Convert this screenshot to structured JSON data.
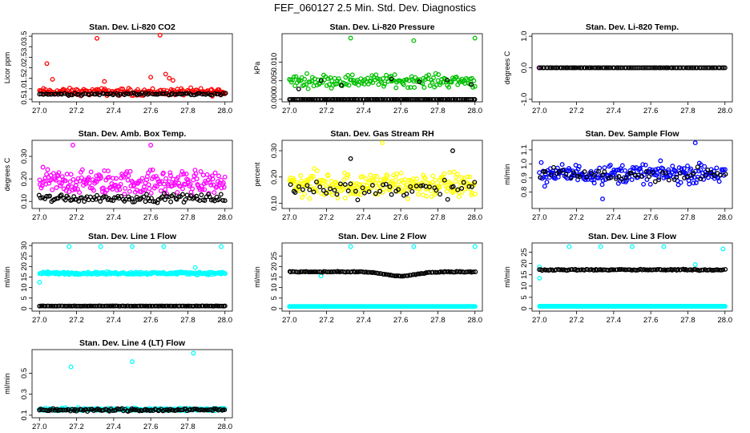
{
  "title": "FEF_060127  2.5 Min. Std. Dev. Diagnostics",
  "chart_data": [
    {
      "type": "scatter",
      "title": "Stan. Dev. Li-820 CO2",
      "ylabel": "Licor ppm",
      "xlim": [
        27.0,
        28.0
      ],
      "ylim": [
        0.5,
        3.5
      ],
      "xticks": [
        "27.0",
        "27.2",
        "27.4",
        "27.6",
        "27.8",
        "28.0"
      ],
      "yticks": [
        "0.5",
        "1.0",
        "1.5",
        "2.0",
        "2.5",
        "3.0",
        "3.5"
      ],
      "series": [
        {
          "color": "#ff0000",
          "base": 0.85,
          "spread": 0.25,
          "n": 180,
          "outliers": [
            [
              27.04,
              2.2
            ],
            [
              27.31,
              3.4
            ],
            [
              27.65,
              3.55
            ],
            [
              27.07,
              1.45
            ],
            [
              27.35,
              1.35
            ],
            [
              27.6,
              1.55
            ],
            [
              27.68,
              1.7
            ],
            [
              27.7,
              1.5
            ],
            [
              27.72,
              1.4
            ]
          ]
        },
        {
          "color": "#000000",
          "base": 0.75,
          "spread": 0.08,
          "n": 90,
          "outliers": []
        }
      ]
    },
    {
      "type": "scatter",
      "title": "Stan. Dev. Li-820 Pressure",
      "ylabel": "kPa",
      "xlim": [
        27.0,
        28.0
      ],
      "ylim": [
        0.0,
        0.017
      ],
      "xticks": [
        "27.0",
        "27.2",
        "27.4",
        "27.6",
        "27.8",
        "28.0"
      ],
      "yticks": [
        "0.000",
        "0.005",
        "0.010"
      ],
      "series": [
        {
          "color": "#00c000",
          "base": 0.005,
          "spread": 0.0025,
          "n": 170,
          "outliers": [
            [
              27.33,
              0.0165
            ],
            [
              27.67,
              0.0158
            ],
            [
              28.0,
              0.0165
            ]
          ]
        },
        {
          "color": "#000000",
          "base": 0.0,
          "spread": 0.0,
          "n": 120,
          "outliers": [
            [
              27.05,
              0.0028
            ],
            [
              27.17,
              0.005
            ],
            [
              27.28,
              0.0038
            ],
            [
              27.55,
              0.0055
            ],
            [
              27.7,
              0.0047
            ],
            [
              27.85,
              0.0052
            ],
            [
              27.98,
              0.004
            ]
          ]
        }
      ]
    },
    {
      "type": "scatter",
      "title": "Stan. Dev. Li-820 Temp.",
      "ylabel": "degrees C",
      "xlim": [
        27.0,
        28.0
      ],
      "ylim": [
        -1.0,
        1.0
      ],
      "xticks": [
        "27.0",
        "27.2",
        "27.4",
        "27.6",
        "27.8",
        "28.0"
      ],
      "yticks": [
        "-1.0",
        "0.0",
        "1.0"
      ],
      "series": [
        {
          "color": "#ff00ff",
          "base": 0.0,
          "spread": 0.0,
          "n": 1,
          "outliers": [
            [
              27.0,
              0.0
            ]
          ]
        },
        {
          "color": "#000000",
          "base": 0.0,
          "spread": 0.0,
          "n": 110,
          "outliers": []
        }
      ]
    },
    {
      "type": "scatter",
      "title": "Stan. Dev. Amb. Box Temp.",
      "ylabel": "degrees C",
      "xlim": [
        27.0,
        28.0
      ],
      "ylim": [
        0.08,
        0.36
      ],
      "xticks": [
        "27.0",
        "27.2",
        "27.4",
        "27.6",
        "27.8",
        "28.0"
      ],
      "yticks": [
        "0.10",
        "0.20",
        "0.30"
      ],
      "series": [
        {
          "color": "#ff00ff",
          "base": 0.185,
          "spread": 0.08,
          "n": 230,
          "outliers": [
            [
              27.18,
              0.35
            ],
            [
              27.6,
              0.35
            ]
          ]
        },
        {
          "color": "#000000",
          "base": 0.115,
          "spread": 0.025,
          "n": 110,
          "outliers": []
        }
      ]
    },
    {
      "type": "scatter",
      "title": "Stan. Dev. Gas Stream RH",
      "ylabel": "percent",
      "xlim": [
        27.0,
        28.0
      ],
      "ylim": [
        0.09,
        0.33
      ],
      "xticks": [
        "27.0",
        "27.2",
        "27.4",
        "27.6",
        "27.8",
        "28.0"
      ],
      "yticks": [
        "0.10",
        "0.20",
        "0.30"
      ],
      "series": [
        {
          "color": "#ffff00",
          "base": 0.17,
          "spread": 0.075,
          "n": 250,
          "outliers": [
            [
              27.5,
              0.33
            ]
          ]
        },
        {
          "color": "#000000",
          "base": 0.155,
          "spread": 0.05,
          "n": 55,
          "outliers": [
            [
              27.33,
              0.27
            ],
            [
              27.88,
              0.3
            ]
          ]
        }
      ]
    },
    {
      "type": "scatter",
      "title": "Stan. Dev. Sample Flow",
      "ylabel": "ml/min",
      "xlim": [
        27.0,
        28.0
      ],
      "ylim": [
        0.7,
        1.15
      ],
      "xticks": [
        "27.0",
        "27.2",
        "27.4",
        "27.6",
        "27.8",
        "28.0"
      ],
      "yticks": [
        "0.8",
        "0.9",
        "1.0",
        "1.1"
      ],
      "series": [
        {
          "color": "#0000ff",
          "base": 0.93,
          "spread": 0.1,
          "n": 220,
          "outliers": [
            [
              27.84,
              1.15
            ],
            [
              27.34,
              0.75
            ]
          ]
        },
        {
          "color": "#000000",
          "base": 0.92,
          "spread": 0.08,
          "n": 55,
          "outliers": []
        }
      ]
    },
    {
      "type": "scatter",
      "title": "Stan. Dev. Line 1 Flow",
      "ylabel": "ml/min",
      "xlim": [
        27.0,
        28.0
      ],
      "ylim": [
        0,
        30
      ],
      "xticks": [
        "27.0",
        "27.2",
        "27.4",
        "27.6",
        "27.8",
        "28.0"
      ],
      "yticks": [
        "0",
        "5",
        "10",
        "15",
        "20",
        "25",
        "30"
      ],
      "series": [
        {
          "color": "#00ffff",
          "base": 16.8,
          "spread": 0.9,
          "n": 230,
          "outliers": [
            [
              27.16,
              29.5
            ],
            [
              27.33,
              29.5
            ],
            [
              27.5,
              29.5
            ],
            [
              27.67,
              29.5
            ],
            [
              27.98,
              29.5
            ],
            [
              27.0,
              12.5
            ],
            [
              27.84,
              19.5
            ]
          ]
        },
        {
          "color": "#000000",
          "base": 1.2,
          "spread": 0.1,
          "n": 120,
          "outliers": []
        }
      ]
    },
    {
      "type": "scatter",
      "title": "Stan. Dev. Line 2 Flow",
      "ylabel": "ml/min",
      "xlim": [
        27.0,
        28.0
      ],
      "ylim": [
        0,
        30
      ],
      "xticks": [
        "27.0",
        "27.2",
        "27.4",
        "27.6",
        "27.8",
        "28.0"
      ],
      "yticks": [
        "0",
        "5",
        "10",
        "15",
        "20",
        "25"
      ],
      "series": [
        {
          "color": "#00ffff",
          "base": 1.0,
          "spread": 0.0,
          "n": 240,
          "outliers": [
            [
              27.33,
              29.5
            ],
            [
              27.67,
              29.5
            ],
            [
              28.0,
              29.5
            ],
            [
              27.17,
              15.5
            ]
          ]
        },
        {
          "color": "#000000",
          "base": 17.5,
          "spread": 0.3,
          "n": 120,
          "dip": true,
          "outliers": []
        }
      ]
    },
    {
      "type": "scatter",
      "title": "Stan. Dev. Line 3 Flow",
      "ylabel": "ml/min",
      "xlim": [
        27.0,
        28.0
      ],
      "ylim": [
        0,
        28
      ],
      "xticks": [
        "27.0",
        "27.2",
        "27.4",
        "27.6",
        "27.8",
        "28.0"
      ],
      "yticks": [
        "0",
        "5",
        "10",
        "15",
        "20",
        "25"
      ],
      "series": [
        {
          "color": "#00ffff",
          "base": 1.0,
          "spread": 0.0,
          "n": 240,
          "outliers": [
            [
              27.0,
              18.5
            ],
            [
              27.0,
              13.5
            ],
            [
              27.16,
              27.5
            ],
            [
              27.33,
              27.5
            ],
            [
              27.5,
              27.5
            ],
            [
              27.67,
              27.5
            ],
            [
              27.84,
              19.5
            ],
            [
              27.99,
              26.5
            ]
          ]
        },
        {
          "color": "#000000",
          "base": 17.2,
          "spread": 0.4,
          "n": 120,
          "outliers": []
        }
      ]
    },
    {
      "type": "scatter",
      "title": "Stan. Dev. Line 4 (LT) Flow",
      "ylabel": "ml/min",
      "xlim": [
        27.0,
        28.0
      ],
      "ylim": [
        0.1,
        0.7
      ],
      "xticks": [
        "27.0",
        "27.2",
        "27.4",
        "27.6",
        "27.8",
        "28.0"
      ],
      "yticks": [
        "0.1",
        "0.3",
        "0.5"
      ],
      "series": [
        {
          "color": "#00ffff",
          "base": 0.155,
          "spread": 0.02,
          "n": 240,
          "outliers": [
            [
              27.17,
              0.56
            ],
            [
              27.5,
              0.61
            ],
            [
              27.83,
              0.69
            ]
          ]
        },
        {
          "color": "#000000",
          "base": 0.15,
          "spread": 0.02,
          "n": 120,
          "outliers": []
        }
      ]
    }
  ]
}
